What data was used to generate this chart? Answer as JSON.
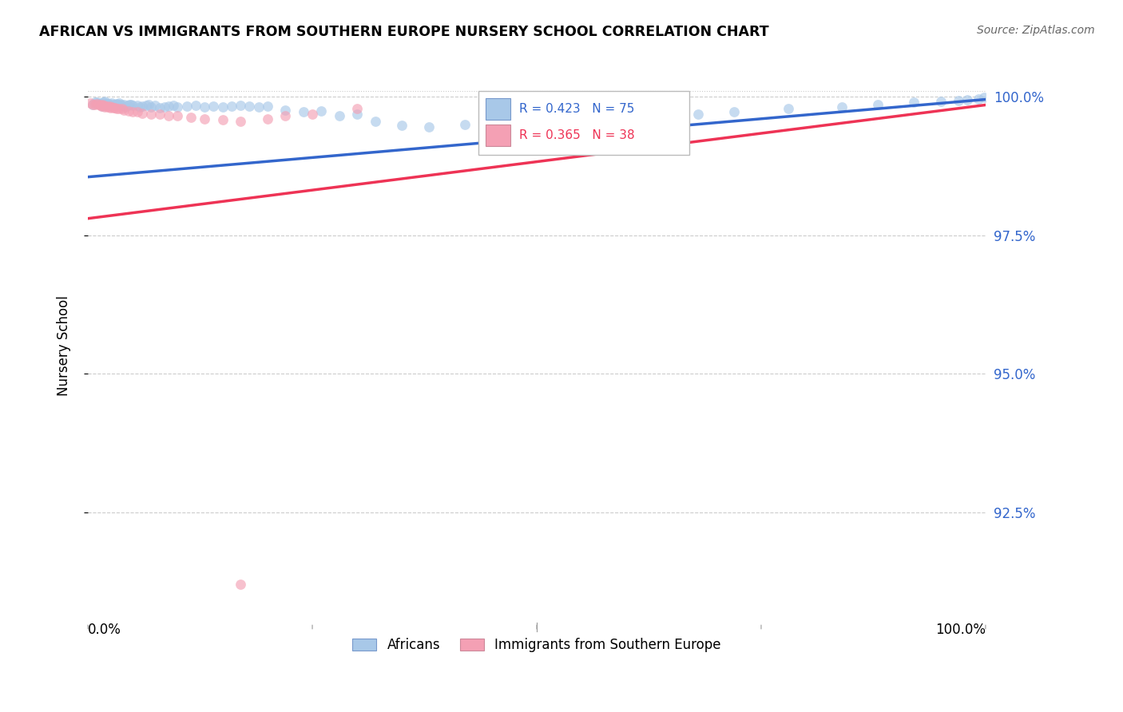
{
  "title": "AFRICAN VS IMMIGRANTS FROM SOUTHERN EUROPE NURSERY SCHOOL CORRELATION CHART",
  "source": "Source: ZipAtlas.com",
  "ylabel": "Nursery School",
  "ytick_labels": [
    "100.0%",
    "97.5%",
    "95.0%",
    "92.5%"
  ],
  "ytick_values": [
    1.0,
    0.975,
    0.95,
    0.925
  ],
  "xlim": [
    0.0,
    1.0
  ],
  "ylim": [
    0.905,
    1.005
  ],
  "legend_blue_label": "Africans",
  "legend_pink_label": "Immigrants from Southern Europe",
  "R_blue": 0.423,
  "N_blue": 75,
  "R_pink": 0.365,
  "N_pink": 38,
  "blue_color": "#A8C8E8",
  "pink_color": "#F4A0B4",
  "line_blue": "#3366CC",
  "line_pink": "#EE3355",
  "scatter_alpha": 0.65,
  "marker_size": 85,
  "blue_line_start_y": 0.9855,
  "blue_line_end_y": 0.9995,
  "pink_line_start_y": 0.978,
  "pink_line_end_y": 0.9985,
  "blue_x": [
    0.005,
    0.008,
    0.01,
    0.012,
    0.015,
    0.016,
    0.017,
    0.018,
    0.019,
    0.02,
    0.021,
    0.022,
    0.023,
    0.024,
    0.025,
    0.027,
    0.028,
    0.03,
    0.032,
    0.033,
    0.035,
    0.036,
    0.038,
    0.04,
    0.042,
    0.044,
    0.046,
    0.048,
    0.05,
    0.055,
    0.058,
    0.06,
    0.065,
    0.068,
    0.07,
    0.075,
    0.08,
    0.085,
    0.09,
    0.095,
    0.1,
    0.11,
    0.12,
    0.13,
    0.14,
    0.15,
    0.16,
    0.17,
    0.18,
    0.19,
    0.2,
    0.22,
    0.24,
    0.26,
    0.28,
    0.3,
    0.32,
    0.35,
    0.38,
    0.42,
    0.46,
    0.52,
    0.58,
    0.64,
    0.68,
    0.72,
    0.78,
    0.84,
    0.88,
    0.92,
    0.95,
    0.97,
    0.98,
    0.992,
    0.998
  ],
  "blue_y": [
    0.9985,
    0.999,
    0.999,
    0.9988,
    0.9985,
    0.9983,
    0.999,
    0.9988,
    0.9992,
    0.9985,
    0.9987,
    0.9989,
    0.9985,
    0.9984,
    0.9986,
    0.9988,
    0.9985,
    0.9985,
    0.9987,
    0.9985,
    0.9988,
    0.9985,
    0.9984,
    0.9986,
    0.9982,
    0.9984,
    0.9985,
    0.9986,
    0.9984,
    0.9984,
    0.9982,
    0.9983,
    0.9984,
    0.9985,
    0.9982,
    0.9984,
    0.998,
    0.9982,
    0.9983,
    0.9984,
    0.9982,
    0.9983,
    0.9984,
    0.9982,
    0.9983,
    0.9982,
    0.9983,
    0.9984,
    0.9983,
    0.9982,
    0.9983,
    0.9975,
    0.9972,
    0.9974,
    0.9965,
    0.9968,
    0.9955,
    0.9948,
    0.9945,
    0.995,
    0.9958,
    0.9955,
    0.996,
    0.9965,
    0.9968,
    0.9972,
    0.9978,
    0.9982,
    0.9985,
    0.999,
    0.9992,
    0.9993,
    0.9995,
    0.9996,
    0.9998
  ],
  "pink_x": [
    0.003,
    0.005,
    0.008,
    0.01,
    0.012,
    0.014,
    0.015,
    0.016,
    0.018,
    0.019,
    0.02,
    0.022,
    0.024,
    0.025,
    0.027,
    0.028,
    0.03,
    0.032,
    0.035,
    0.038,
    0.04,
    0.045,
    0.05,
    0.055,
    0.06,
    0.07,
    0.08,
    0.09,
    0.1,
    0.115,
    0.13,
    0.15,
    0.17,
    0.2,
    0.22,
    0.25,
    0.3,
    0.17
  ],
  "pink_y": [
    0.9988,
    0.9985,
    0.9985,
    0.9987,
    0.9985,
    0.9984,
    0.9983,
    0.9985,
    0.9984,
    0.9982,
    0.9983,
    0.9982,
    0.9983,
    0.998,
    0.9982,
    0.998,
    0.998,
    0.9978,
    0.9978,
    0.9978,
    0.9975,
    0.9974,
    0.9972,
    0.9972,
    0.997,
    0.9968,
    0.9968,
    0.9965,
    0.9965,
    0.9962,
    0.996,
    0.9958,
    0.9955,
    0.996,
    0.9965,
    0.9968,
    0.9978,
    0.912
  ]
}
